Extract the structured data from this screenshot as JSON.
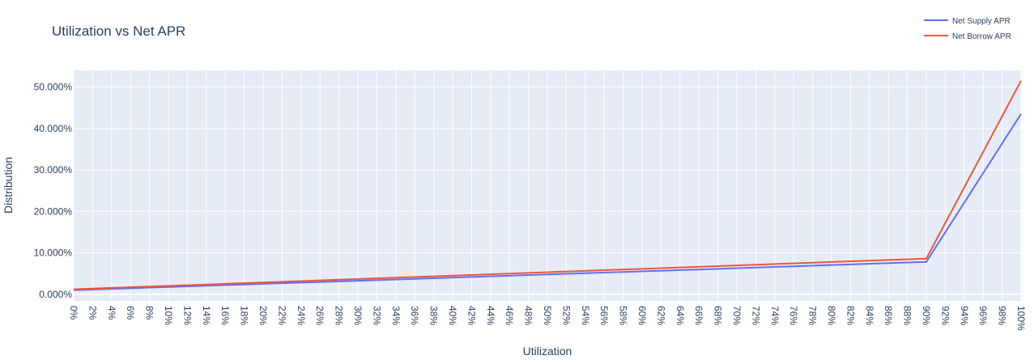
{
  "chart_data": {
    "type": "line",
    "title": "Utilization vs Net APR",
    "xlabel": "Utilization",
    "ylabel": "Distribution",
    "x": [
      0,
      90,
      100
    ],
    "x_ticks": [
      "0%",
      "2%",
      "4%",
      "6%",
      "8%",
      "10%",
      "12%",
      "14%",
      "16%",
      "18%",
      "20%",
      "22%",
      "24%",
      "26%",
      "28%",
      "30%",
      "32%",
      "34%",
      "36%",
      "38%",
      "40%",
      "42%",
      "44%",
      "46%",
      "48%",
      "50%",
      "52%",
      "54%",
      "56%",
      "58%",
      "60%",
      "62%",
      "64%",
      "66%",
      "68%",
      "70%",
      "72%",
      "74%",
      "76%",
      "78%",
      "80%",
      "82%",
      "84%",
      "86%",
      "88%",
      "90%",
      "92%",
      "94%",
      "96%",
      "98%",
      "100%"
    ],
    "y_ticks": [
      "0.000%",
      "10.000%",
      "20.000%",
      "30.000%",
      "40.000%",
      "50.000%"
    ],
    "xlim": [
      0,
      100
    ],
    "ylim": [
      -1.6,
      54
    ],
    "grid": true,
    "legend_position": "top-right",
    "series": [
      {
        "name": "Net Supply APR",
        "color": "#636efa",
        "values": [
          1.0,
          7.8,
          43.5
        ]
      },
      {
        "name": "Net Borrow APR",
        "color": "#ef553b",
        "values": [
          1.2,
          8.6,
          51.5
        ]
      }
    ],
    "plot_bg": "#e5ecf6",
    "grid_color": "#ffffff"
  }
}
